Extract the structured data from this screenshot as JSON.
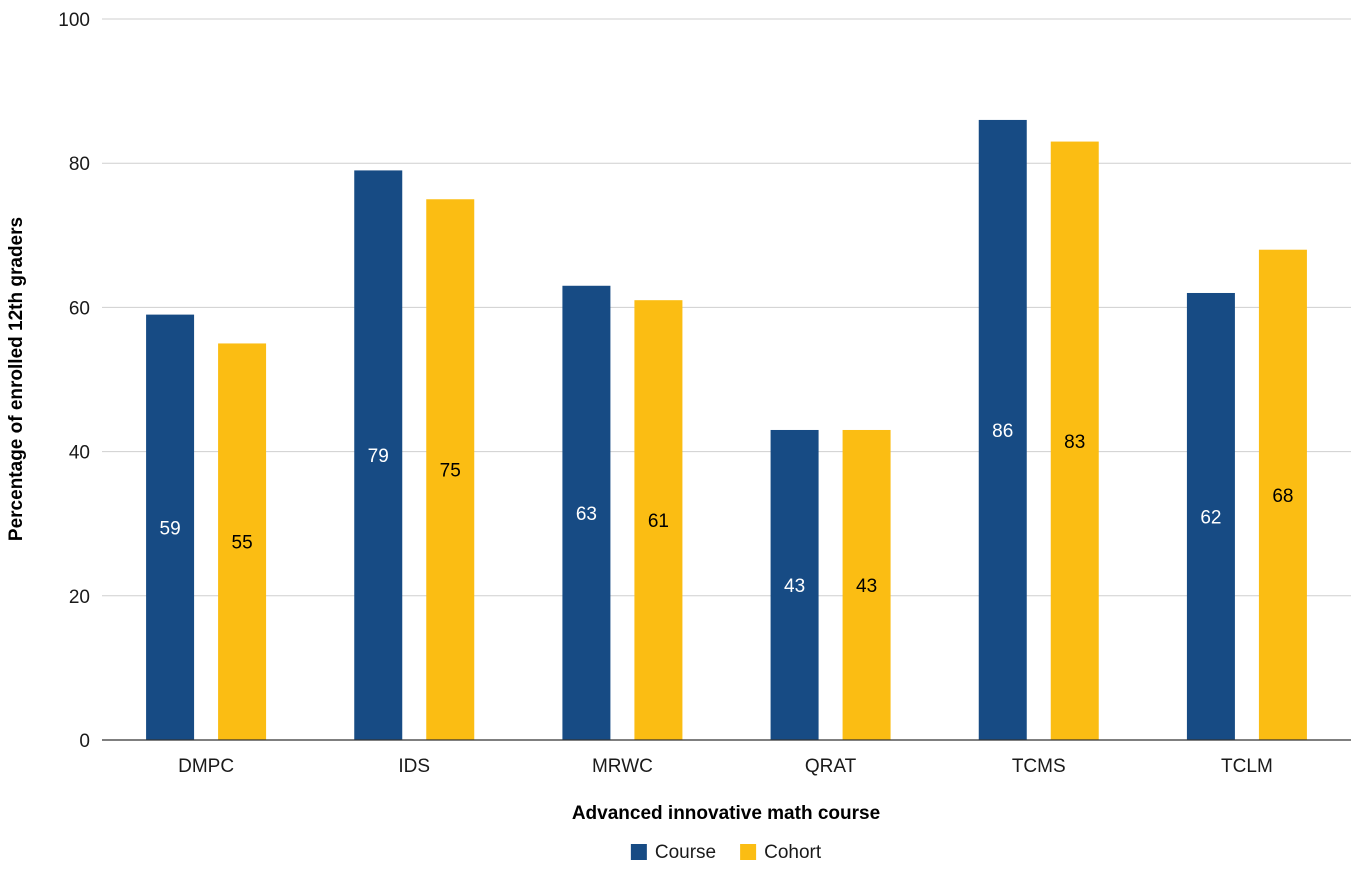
{
  "chart_data": {
    "type": "bar",
    "xlabel": "Advanced innovative math course",
    "ylabel": "Percentage of enrolled 12th graders",
    "ylim": [
      0,
      100
    ],
    "yticks": [
      0,
      20,
      40,
      60,
      80,
      100
    ],
    "grid": true,
    "legend_position": "bottom-center",
    "categories": [
      "DMPC",
      "IDS",
      "MRWC",
      "QRAT",
      "TCMS",
      "TCLM"
    ],
    "series": [
      {
        "name": "Course",
        "color": "#174b84",
        "label_color": "#ffffff",
        "values": [
          59,
          79,
          63,
          43,
          86,
          62
        ]
      },
      {
        "name": "Cohort",
        "color": "#fbbd13",
        "label_color": "#000000",
        "values": [
          55,
          75,
          61,
          43,
          83,
          68
        ]
      }
    ]
  }
}
